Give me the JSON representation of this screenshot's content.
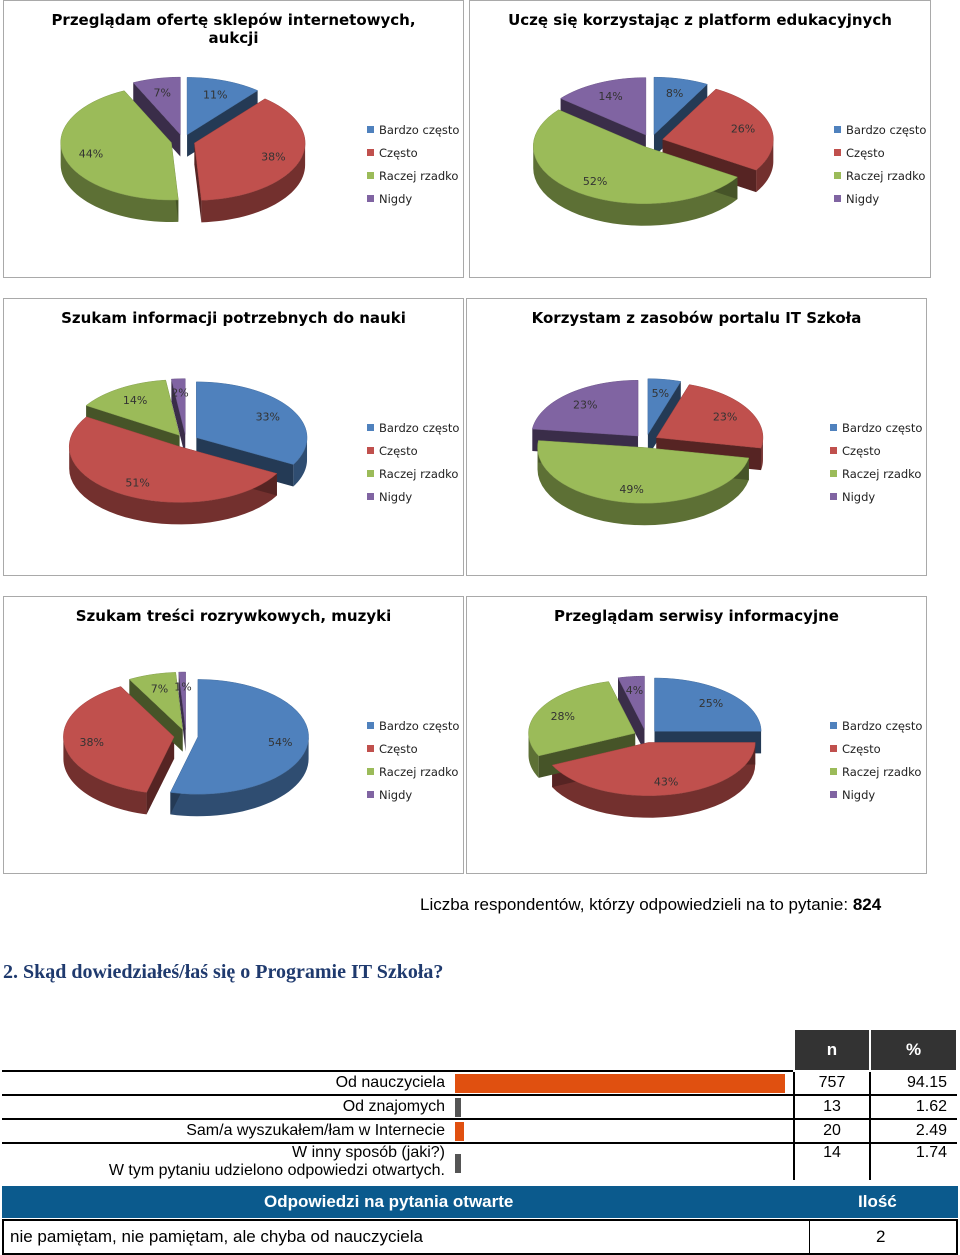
{
  "legend": [
    "Bardzo często",
    "Często",
    "Raczej rzadko",
    "Nigdy"
  ],
  "colors": [
    "#4f81bd",
    "#c0504d",
    "#9bbb59",
    "#8064a2"
  ],
  "charts": [
    {
      "title": "Przeglądam ofertę sklepów internetowych,\naukcji",
      "values": [
        11,
        38,
        44,
        7
      ],
      "labels": [
        "11%",
        "38%",
        "44%",
        "7%"
      ]
    },
    {
      "title": "Uczę się korzystając z platform edukacyjnych",
      "values": [
        8,
        26,
        52,
        14
      ],
      "labels": [
        "8%",
        "26%",
        "52%",
        "14%"
      ]
    },
    {
      "title": "Szukam informacji potrzebnych do nauki",
      "values": [
        33,
        51,
        14,
        2
      ],
      "labels": [
        "33%",
        "51%",
        "14%",
        "2%"
      ]
    },
    {
      "title": "Korzystam z zasobów portalu IT Szkoła",
      "values": [
        5,
        23,
        49,
        23
      ],
      "labels": [
        "5%",
        "23%",
        "49%",
        "23%"
      ]
    },
    {
      "title": "Szukam treści rozrywkowych, muzyki",
      "values": [
        54,
        38,
        7,
        1
      ],
      "labels": [
        "54%",
        "38%",
        "7%",
        "1%"
      ]
    },
    {
      "title": "Przeglądam serwisy informacyjne",
      "values": [
        25,
        43,
        28,
        4
      ],
      "labels": [
        "25%",
        "43%",
        "28%",
        "4%"
      ]
    }
  ],
  "respondents": {
    "text": "Liczba respondentów, którzy odpowiedzieli na to pytanie: ",
    "count": "824"
  },
  "question": {
    "title": "2. Skąd dowiedziałeś/łaś się o Programie IT Szkoła?"
  },
  "table": {
    "header_n": "n",
    "header_pct": "%",
    "rows": [
      {
        "label": "Od nauczyciela",
        "n": "757",
        "pct": "94.15",
        "bar_color": "#e05010"
      },
      {
        "label": "Od znajomych",
        "n": "13",
        "pct": "1.62",
        "bar_color": "#555555"
      },
      {
        "label": "Sam/a wyszukałem/łam w Internecie",
        "n": "20",
        "pct": "2.49",
        "bar_color": "#e05010"
      },
      {
        "label": "W inny sposób (jaki?)",
        "n": "14",
        "pct": "1.74",
        "bar_color": "#555555"
      }
    ],
    "note": "W tym pytaniu udzielono odpowiedzi otwartych."
  },
  "open_answers": {
    "header_label": "Odpowiedzi na pytania otwarte",
    "header_count": "Ilość",
    "rows": [
      {
        "text": "nie pamiętam, nie pamiętam, ale chyba od nauczyciela",
        "count": "2"
      }
    ]
  }
}
